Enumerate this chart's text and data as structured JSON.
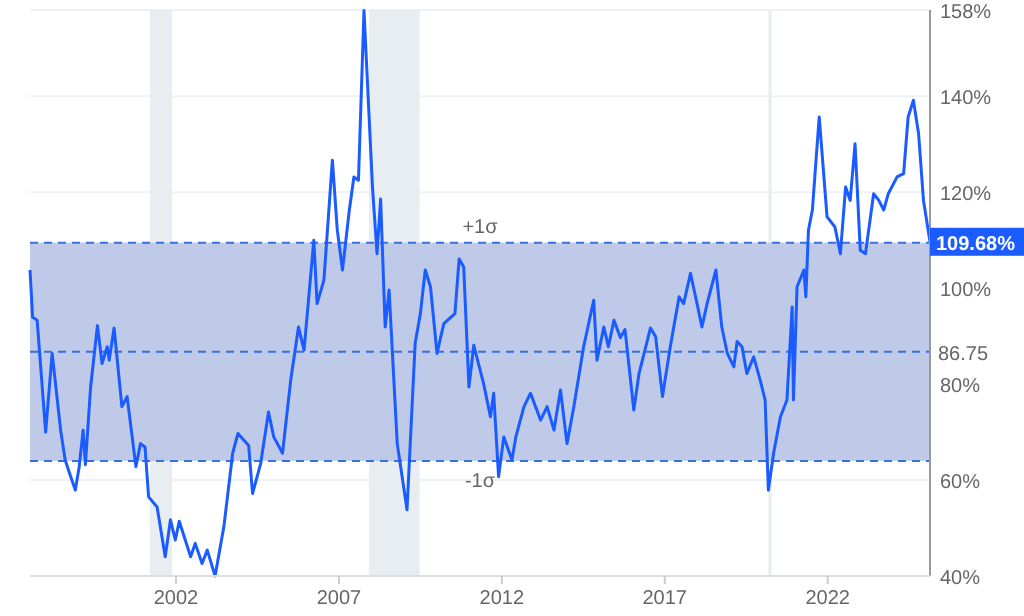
{
  "chart_data": {
    "type": "line",
    "x": [
      1997.52,
      1997.6,
      1997.74,
      1998.0,
      1998.2,
      1998.46,
      1998.6,
      1998.77,
      1998.91,
      1999.03,
      1999.15,
      1999.22,
      1999.38,
      1999.59,
      1999.73,
      1999.89,
      1999.95,
      2000.1,
      2000.34,
      2000.5,
      2000.77,
      2000.91,
      2001.05,
      2001.16,
      2001.42,
      2001.67,
      2001.83,
      2001.98,
      2002.1,
      2002.45,
      2002.59,
      2002.8,
      2002.96,
      2003.2,
      2003.47,
      2003.74,
      2003.9,
      2004.23,
      2004.35,
      2004.6,
      2004.84,
      2005.0,
      2005.27,
      2005.52,
      2005.76,
      2005.93,
      2006.23,
      2006.33,
      2006.54,
      2006.8,
      2006.95,
      2007.11,
      2007.32,
      2007.46,
      2007.6,
      2007.77,
      2008.03,
      2008.17,
      2008.28,
      2008.42,
      2008.54,
      2008.79,
      2009.09,
      2009.34,
      2009.5,
      2009.65,
      2009.81,
      2010.01,
      2010.22,
      2010.56,
      2010.69,
      2010.83,
      2010.99,
      2011.14,
      2011.44,
      2011.65,
      2011.75,
      2011.9,
      2012.06,
      2012.31,
      2012.43,
      2012.68,
      2012.88,
      2013.19,
      2013.39,
      2013.6,
      2013.8,
      2014.0,
      2014.21,
      2014.51,
      2014.82,
      2014.92,
      2015.13,
      2015.27,
      2015.44,
      2015.64,
      2015.78,
      2016.05,
      2016.21,
      2016.56,
      2016.72,
      2016.93,
      2017.17,
      2017.44,
      2017.58,
      2017.79,
      2017.99,
      2018.14,
      2018.3,
      2018.57,
      2018.75,
      2018.92,
      2019.12,
      2019.22,
      2019.37,
      2019.52,
      2019.73,
      2019.93,
      2020.08,
      2020.18,
      2020.34,
      2020.55,
      2020.75,
      2020.91,
      2020.95,
      2021.06,
      2021.27,
      2021.33,
      2021.41,
      2021.53,
      2021.74,
      2021.98,
      2022.22,
      2022.39,
      2022.55,
      2022.69,
      2022.84,
      2023.0,
      2023.16,
      2023.41,
      2023.57,
      2023.72,
      2023.86,
      2024.13,
      2024.33,
      2024.47,
      2024.63,
      2024.79,
      2024.94,
      2025.14
    ],
    "series": [
      {
        "color": "#1a5cff",
        "values": [
          103.8,
          94.0,
          93.3,
          70.0,
          86.4,
          70.4,
          64.2,
          60.7,
          57.9,
          62.8,
          70.4,
          63.2,
          79.4,
          92.2,
          84.3,
          87.8,
          85,
          91.7,
          75.3,
          77.4,
          62.8,
          67.6,
          66.9,
          56.5,
          54.4,
          44,
          51.7,
          47.5,
          51.4,
          44,
          46.8,
          42.6,
          45.4,
          40,
          50.3,
          65.6,
          69.7,
          67.2,
          57.2,
          63.5,
          74.2,
          69,
          65.6,
          80.8,
          91.9,
          87.1,
          110,
          96.8,
          101.7,
          126.7,
          112.1,
          103.8,
          116.3,
          123.2,
          122.5,
          157.9,
          121.1,
          107.2,
          118.6,
          91.9,
          99.6,
          67.6,
          53.8,
          88.5,
          94.7,
          103.8,
          100.3,
          86.4,
          92.6,
          94.7,
          106.1,
          104.4,
          79.4,
          88.1,
          80.1,
          73.2,
          78.1,
          60.7,
          69,
          64.2,
          69,
          75.3,
          78.1,
          72.5,
          75.3,
          70.4,
          78.8,
          67.6,
          75.3,
          87.8,
          97.5,
          85,
          91.9,
          87.8,
          93.3,
          89.7,
          91.4,
          74.6,
          82.2,
          91.7,
          89.9,
          77.4,
          87.8,
          98.2,
          96.8,
          103.1,
          96.8,
          91.9,
          96.8,
          103.8,
          91.9,
          86.4,
          83.6,
          88.9,
          87.8,
          82.2,
          85.7,
          80.8,
          76.7,
          57.9,
          65.6,
          73.2,
          76.7,
          96.1,
          76.7,
          100.3,
          103.8,
          98.2,
          112.1,
          116.3,
          135.7,
          114.9,
          112.8,
          107.2,
          121.1,
          118.3,
          130.1,
          107.9,
          107.2,
          119.7,
          118.3,
          116.3,
          119.7,
          123.2,
          123.9,
          135.7,
          139.2,
          132.2,
          118.3,
          109.68
        ]
      }
    ],
    "xlim": [
      1997.52,
      2025.14
    ],
    "xticks": [
      2002,
      2007,
      2012,
      2017,
      2022
    ],
    "ylim": [
      40,
      158
    ],
    "yticks": [
      {
        "value": 40,
        "label": "40%"
      },
      {
        "value": 60,
        "label": "60%"
      },
      {
        "value": 80,
        "label": "80%"
      },
      {
        "value": 100,
        "label": "100%"
      },
      {
        "value": 120,
        "label": "120%"
      },
      {
        "value": 140,
        "label": "140%"
      },
      {
        "value": 158,
        "label": "158%"
      }
    ],
    "grid": "y",
    "marker": "none",
    "line_style": "solid",
    "bands": [
      {
        "axis": "x",
        "from": 2001.2,
        "to": 2001.88,
        "color": "#e8edf2"
      },
      {
        "axis": "x",
        "from": 2007.92,
        "to": 2009.48,
        "color": "#e8edf2"
      },
      {
        "axis": "x",
        "from": 2020.18,
        "to": 2020.28,
        "color": "#e8edf2"
      },
      {
        "axis": "y",
        "from": 64,
        "to": 109.5,
        "color": "#b8c4e6"
      }
    ],
    "ref_lines": [
      {
        "axis": "y",
        "value": 86.75,
        "label": "86.75",
        "color": "#3b6fe0",
        "line_style": "dashed"
      },
      {
        "axis": "y",
        "value": 109.5,
        "label": "+1σ",
        "color": "#3b6fe0",
        "line_style": "dashed"
      },
      {
        "axis": "y",
        "value": 64,
        "label": "-1σ",
        "color": "#3b6fe0",
        "line_style": "dashed"
      }
    ],
    "annotations": [
      {
        "text": "109.68%",
        "x": 2025.14,
        "y": 109.68
      }
    ]
  }
}
